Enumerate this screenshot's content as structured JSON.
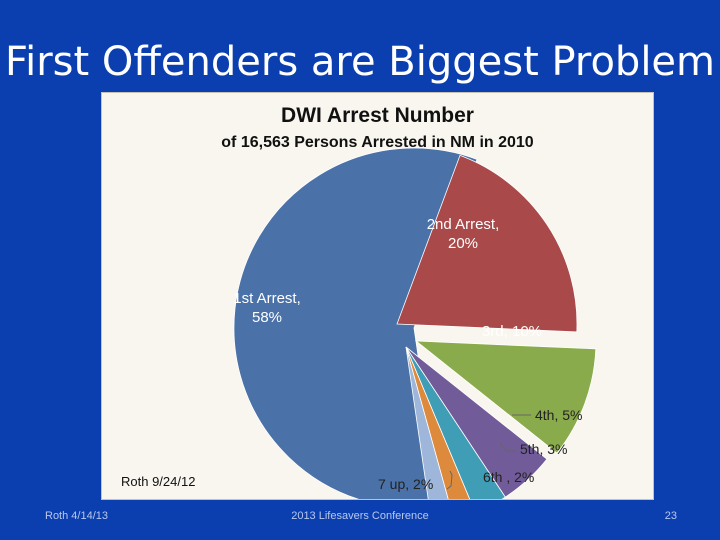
{
  "slide": {
    "title": "First Offenders are Biggest Problem",
    "footer_left": "Roth 4/14/13",
    "footer_center": "2013 Lifesavers Conference",
    "page_number": "23"
  },
  "chart_note": "Roth 9/24/12",
  "chart_data": {
    "type": "pie",
    "title": "DWI Arrest Number",
    "subtitle": "of 16,563 Persons Arrested in NM in 2010",
    "exploded": true,
    "slices": [
      {
        "name": "1st Arrest",
        "value": 58,
        "color": "#4a72a8",
        "label_lines": [
          "1st Arrest,",
          "58%"
        ],
        "label_color": "#ffffff"
      },
      {
        "name": "2nd Arrest",
        "value": 20,
        "color": "#a9494a",
        "label_lines": [
          "2nd Arrest,",
          "20%"
        ],
        "label_color": "#ffffff"
      },
      {
        "name": "3rd",
        "value": 10,
        "color": "#8aab4b",
        "label_lines": [
          "3rd, 10%"
        ],
        "label_color": "#ffffff"
      },
      {
        "name": "4th",
        "value": 5,
        "color": "#715b99",
        "label_lines": [
          "4th, 5%"
        ],
        "label_color": "#222222"
      },
      {
        "name": "5th",
        "value": 3,
        "color": "#3f9db5",
        "label_lines": [
          "5th, 3%"
        ],
        "label_color": "#222222"
      },
      {
        "name": "6th",
        "value": 2,
        "color": "#dd8a3c",
        "label_lines": [
          "6th , 2%"
        ],
        "label_color": "#222222"
      },
      {
        "name": "7 up",
        "value": 2,
        "color": "#9db6da",
        "label_lines": [
          "7 up, 2%"
        ],
        "label_color": "#222222"
      }
    ]
  }
}
